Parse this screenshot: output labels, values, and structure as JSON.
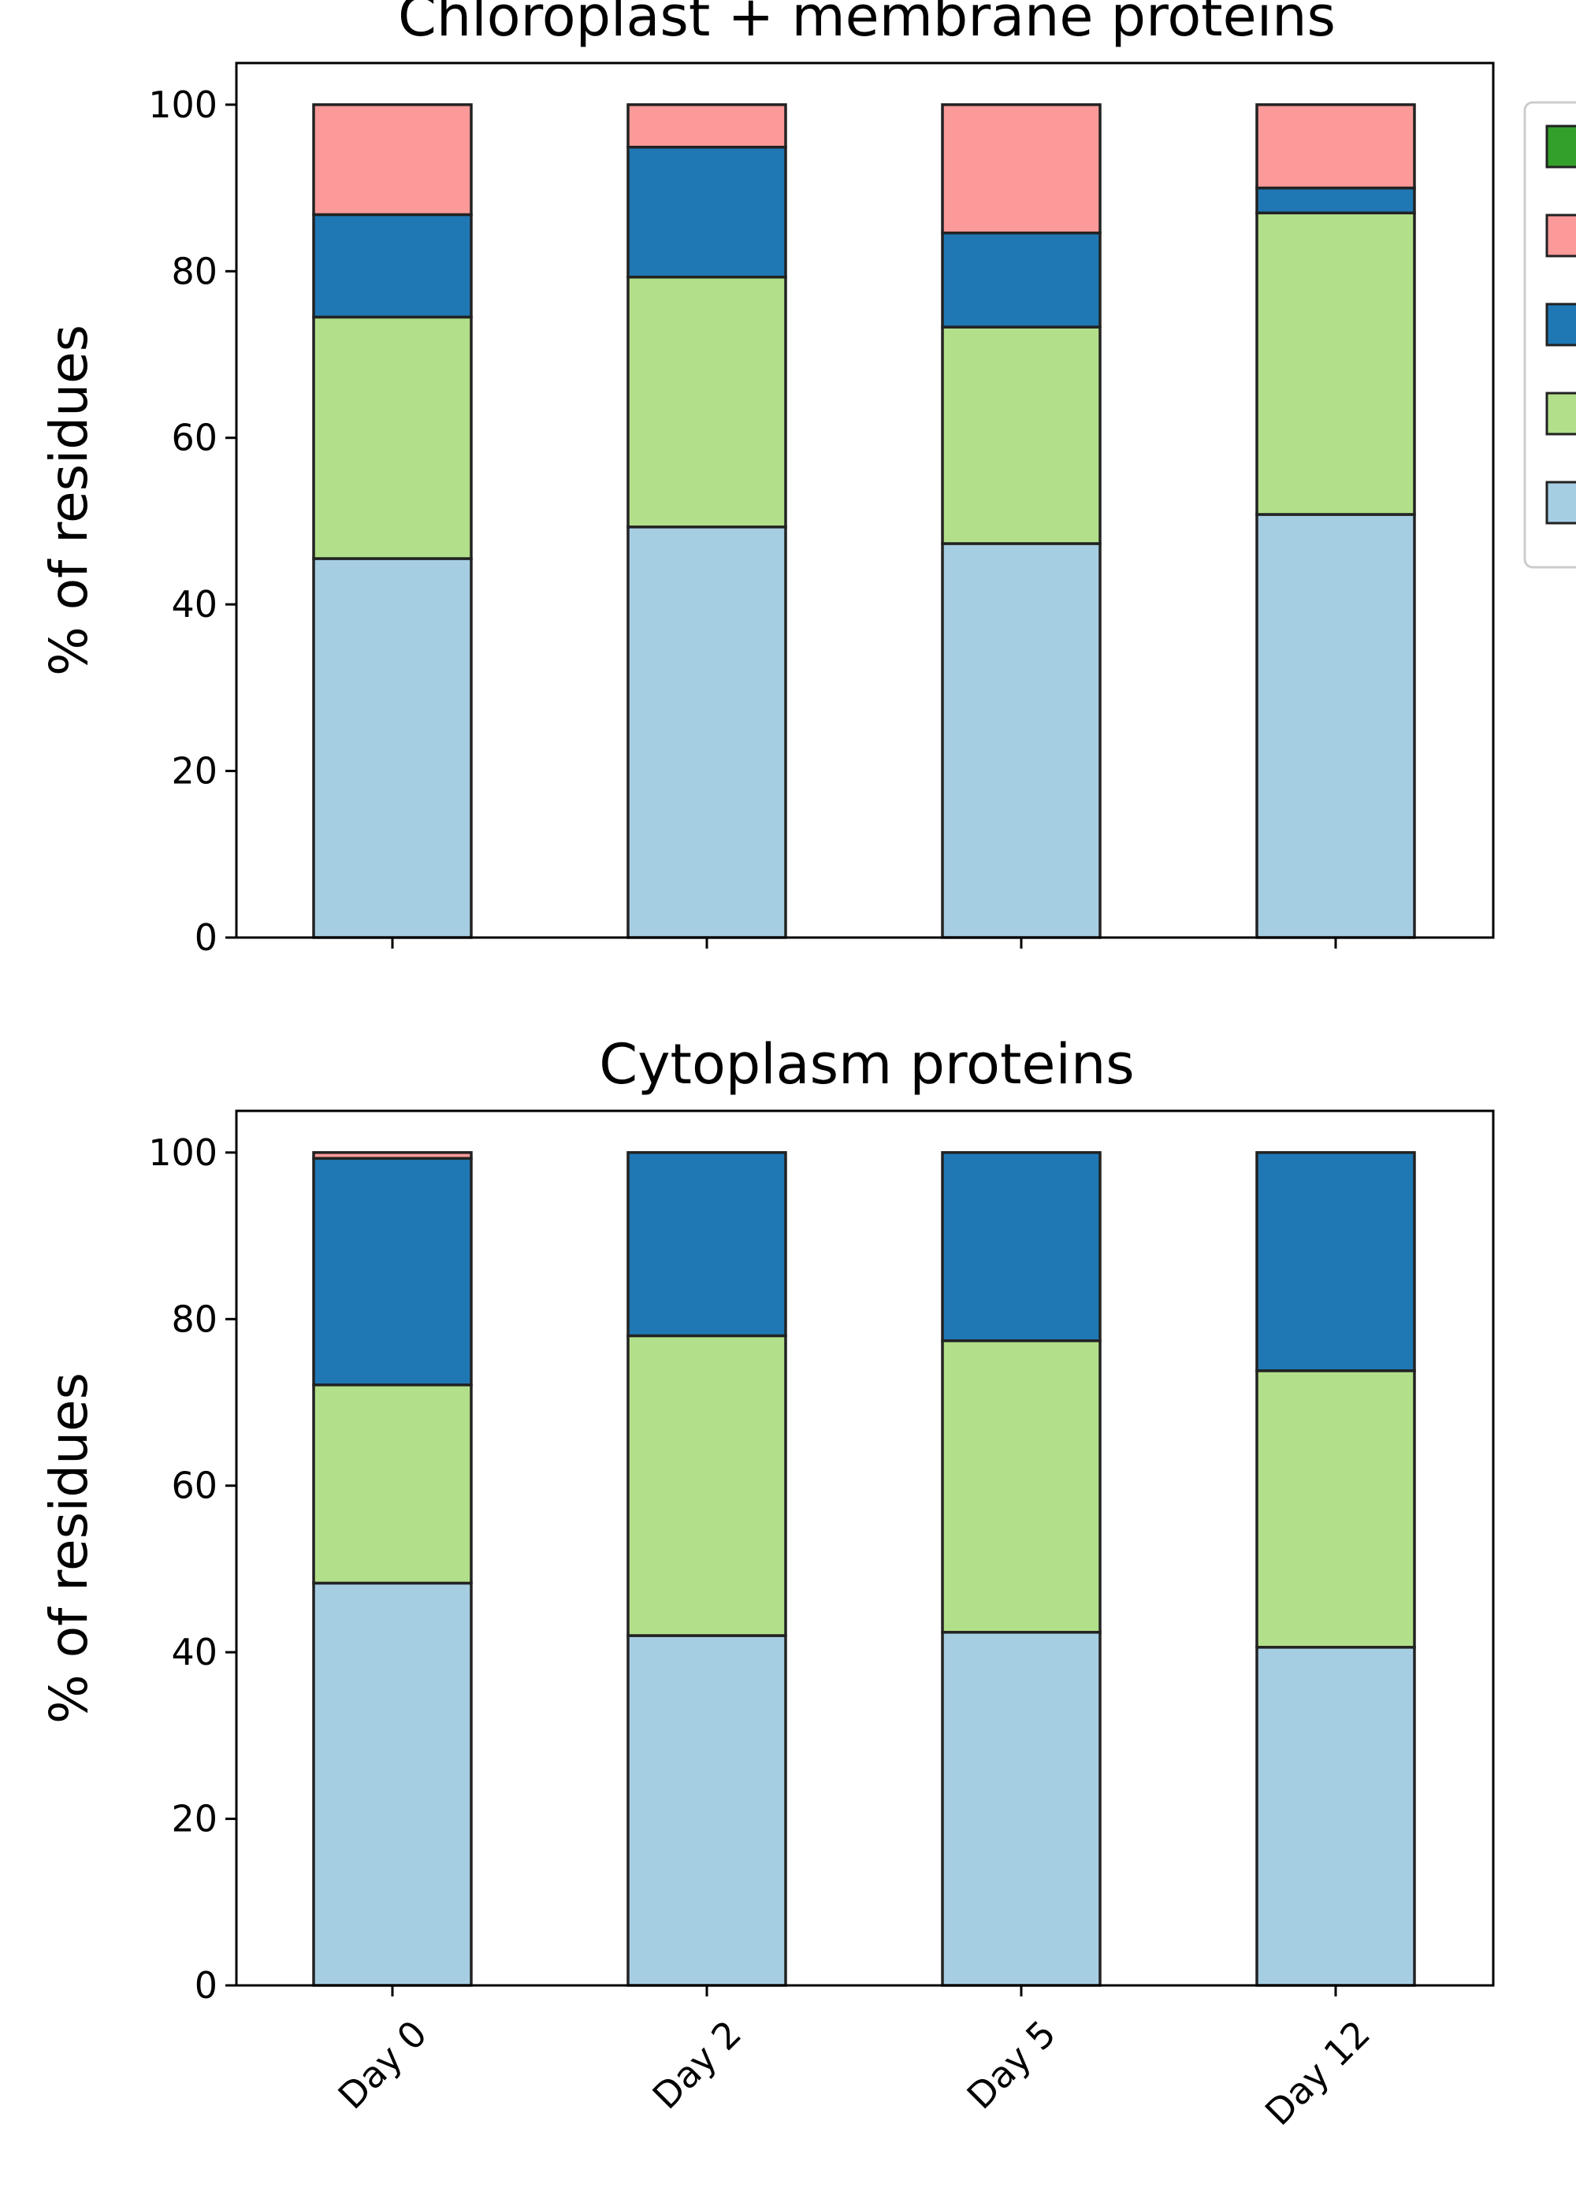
{
  "colors": {
    "series": [
      "#a6cee3",
      "#b2df8a",
      "#1f78b4",
      "#fb9a99",
      "#33a02c"
    ],
    "bar_edge": "#222222",
    "axes": "#000000",
    "legend_border": "#cccccc"
  },
  "legend": {
    "entries": [
      {
        "color": "#33a02c"
      },
      {
        "color": "#fb9a99"
      },
      {
        "color": "#1f78b4"
      },
      {
        "color": "#b2df8a"
      },
      {
        "color": "#a6cee3"
      }
    ]
  },
  "chart_data": [
    {
      "type": "bar",
      "stacked": true,
      "title": "Chloroplast + membrane proteins",
      "xlabel": "",
      "ylabel": "% of residues",
      "ylim": [
        0,
        105
      ],
      "yticks": [
        0,
        20,
        40,
        60,
        80,
        100
      ],
      "categories": [
        "Day 0",
        "Day 2",
        "Day 5",
        "Day 12"
      ],
      "show_xtick_labels": false,
      "grid": false,
      "series": [
        {
          "color": "#a6cee3",
          "values": [
            45.5,
            49.3,
            47.3,
            50.8
          ]
        },
        {
          "color": "#b2df8a",
          "values": [
            29.0,
            30.0,
            26.0,
            36.2
          ]
        },
        {
          "color": "#1f78b4",
          "values": [
            12.3,
            15.6,
            11.3,
            3.0
          ]
        },
        {
          "color": "#fb9a99",
          "values": [
            13.2,
            5.1,
            15.4,
            10.0
          ]
        },
        {
          "color": "#33a02c",
          "values": [
            0,
            0,
            0,
            0
          ]
        }
      ]
    },
    {
      "type": "bar",
      "stacked": true,
      "title": "Cytoplasm proteins",
      "xlabel": "",
      "ylabel": "% of residues",
      "ylim": [
        0,
        105
      ],
      "yticks": [
        0,
        20,
        40,
        60,
        80,
        100
      ],
      "categories": [
        "Day 0",
        "Day 2",
        "Day 5",
        "Day 12"
      ],
      "show_xtick_labels": true,
      "grid": false,
      "series": [
        {
          "color": "#a6cee3",
          "values": [
            48.3,
            42.0,
            42.4,
            40.6
          ]
        },
        {
          "color": "#b2df8a",
          "values": [
            23.8,
            36.0,
            35.0,
            33.2
          ]
        },
        {
          "color": "#1f78b4",
          "values": [
            27.2,
            22.0,
            22.6,
            26.2
          ]
        },
        {
          "color": "#fb9a99",
          "values": [
            0.7,
            0,
            0,
            0
          ]
        },
        {
          "color": "#33a02c",
          "values": [
            0,
            0,
            0,
            0
          ]
        }
      ]
    }
  ]
}
